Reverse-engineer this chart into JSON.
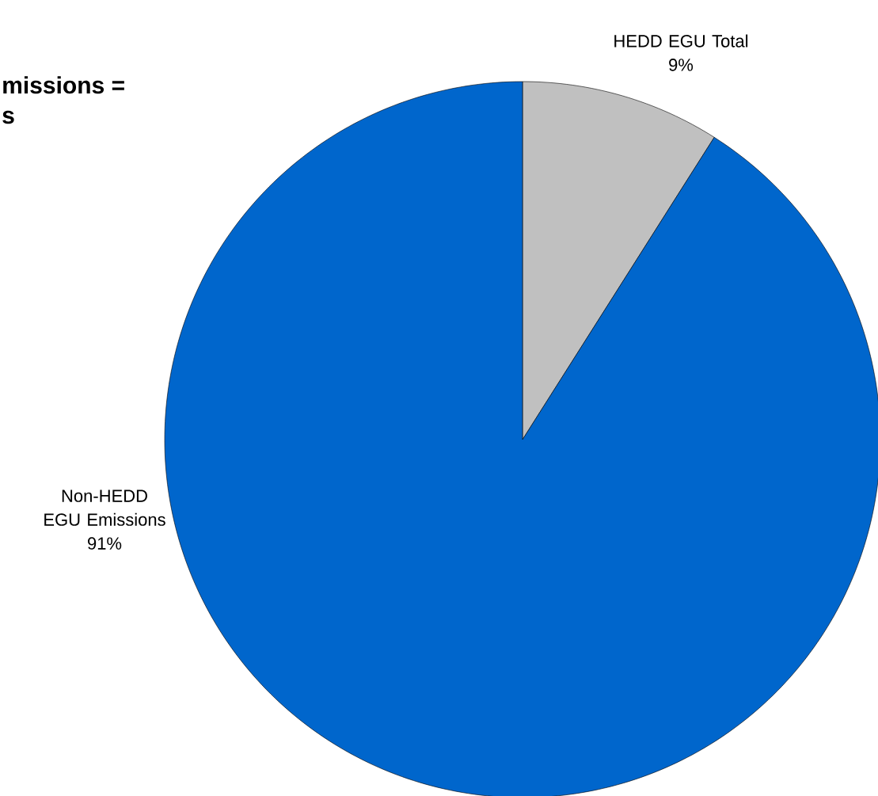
{
  "chart_data": {
    "type": "pie",
    "title": "missions =",
    "subtitle": "s",
    "categories": [
      "HEDD EGU Total",
      "Non-HEDD EGU Emissions"
    ],
    "values": [
      9,
      91
    ],
    "colors": [
      "#c0c0c0",
      "#0066cc"
    ],
    "value_labels": [
      "9%",
      "91%"
    ]
  }
}
